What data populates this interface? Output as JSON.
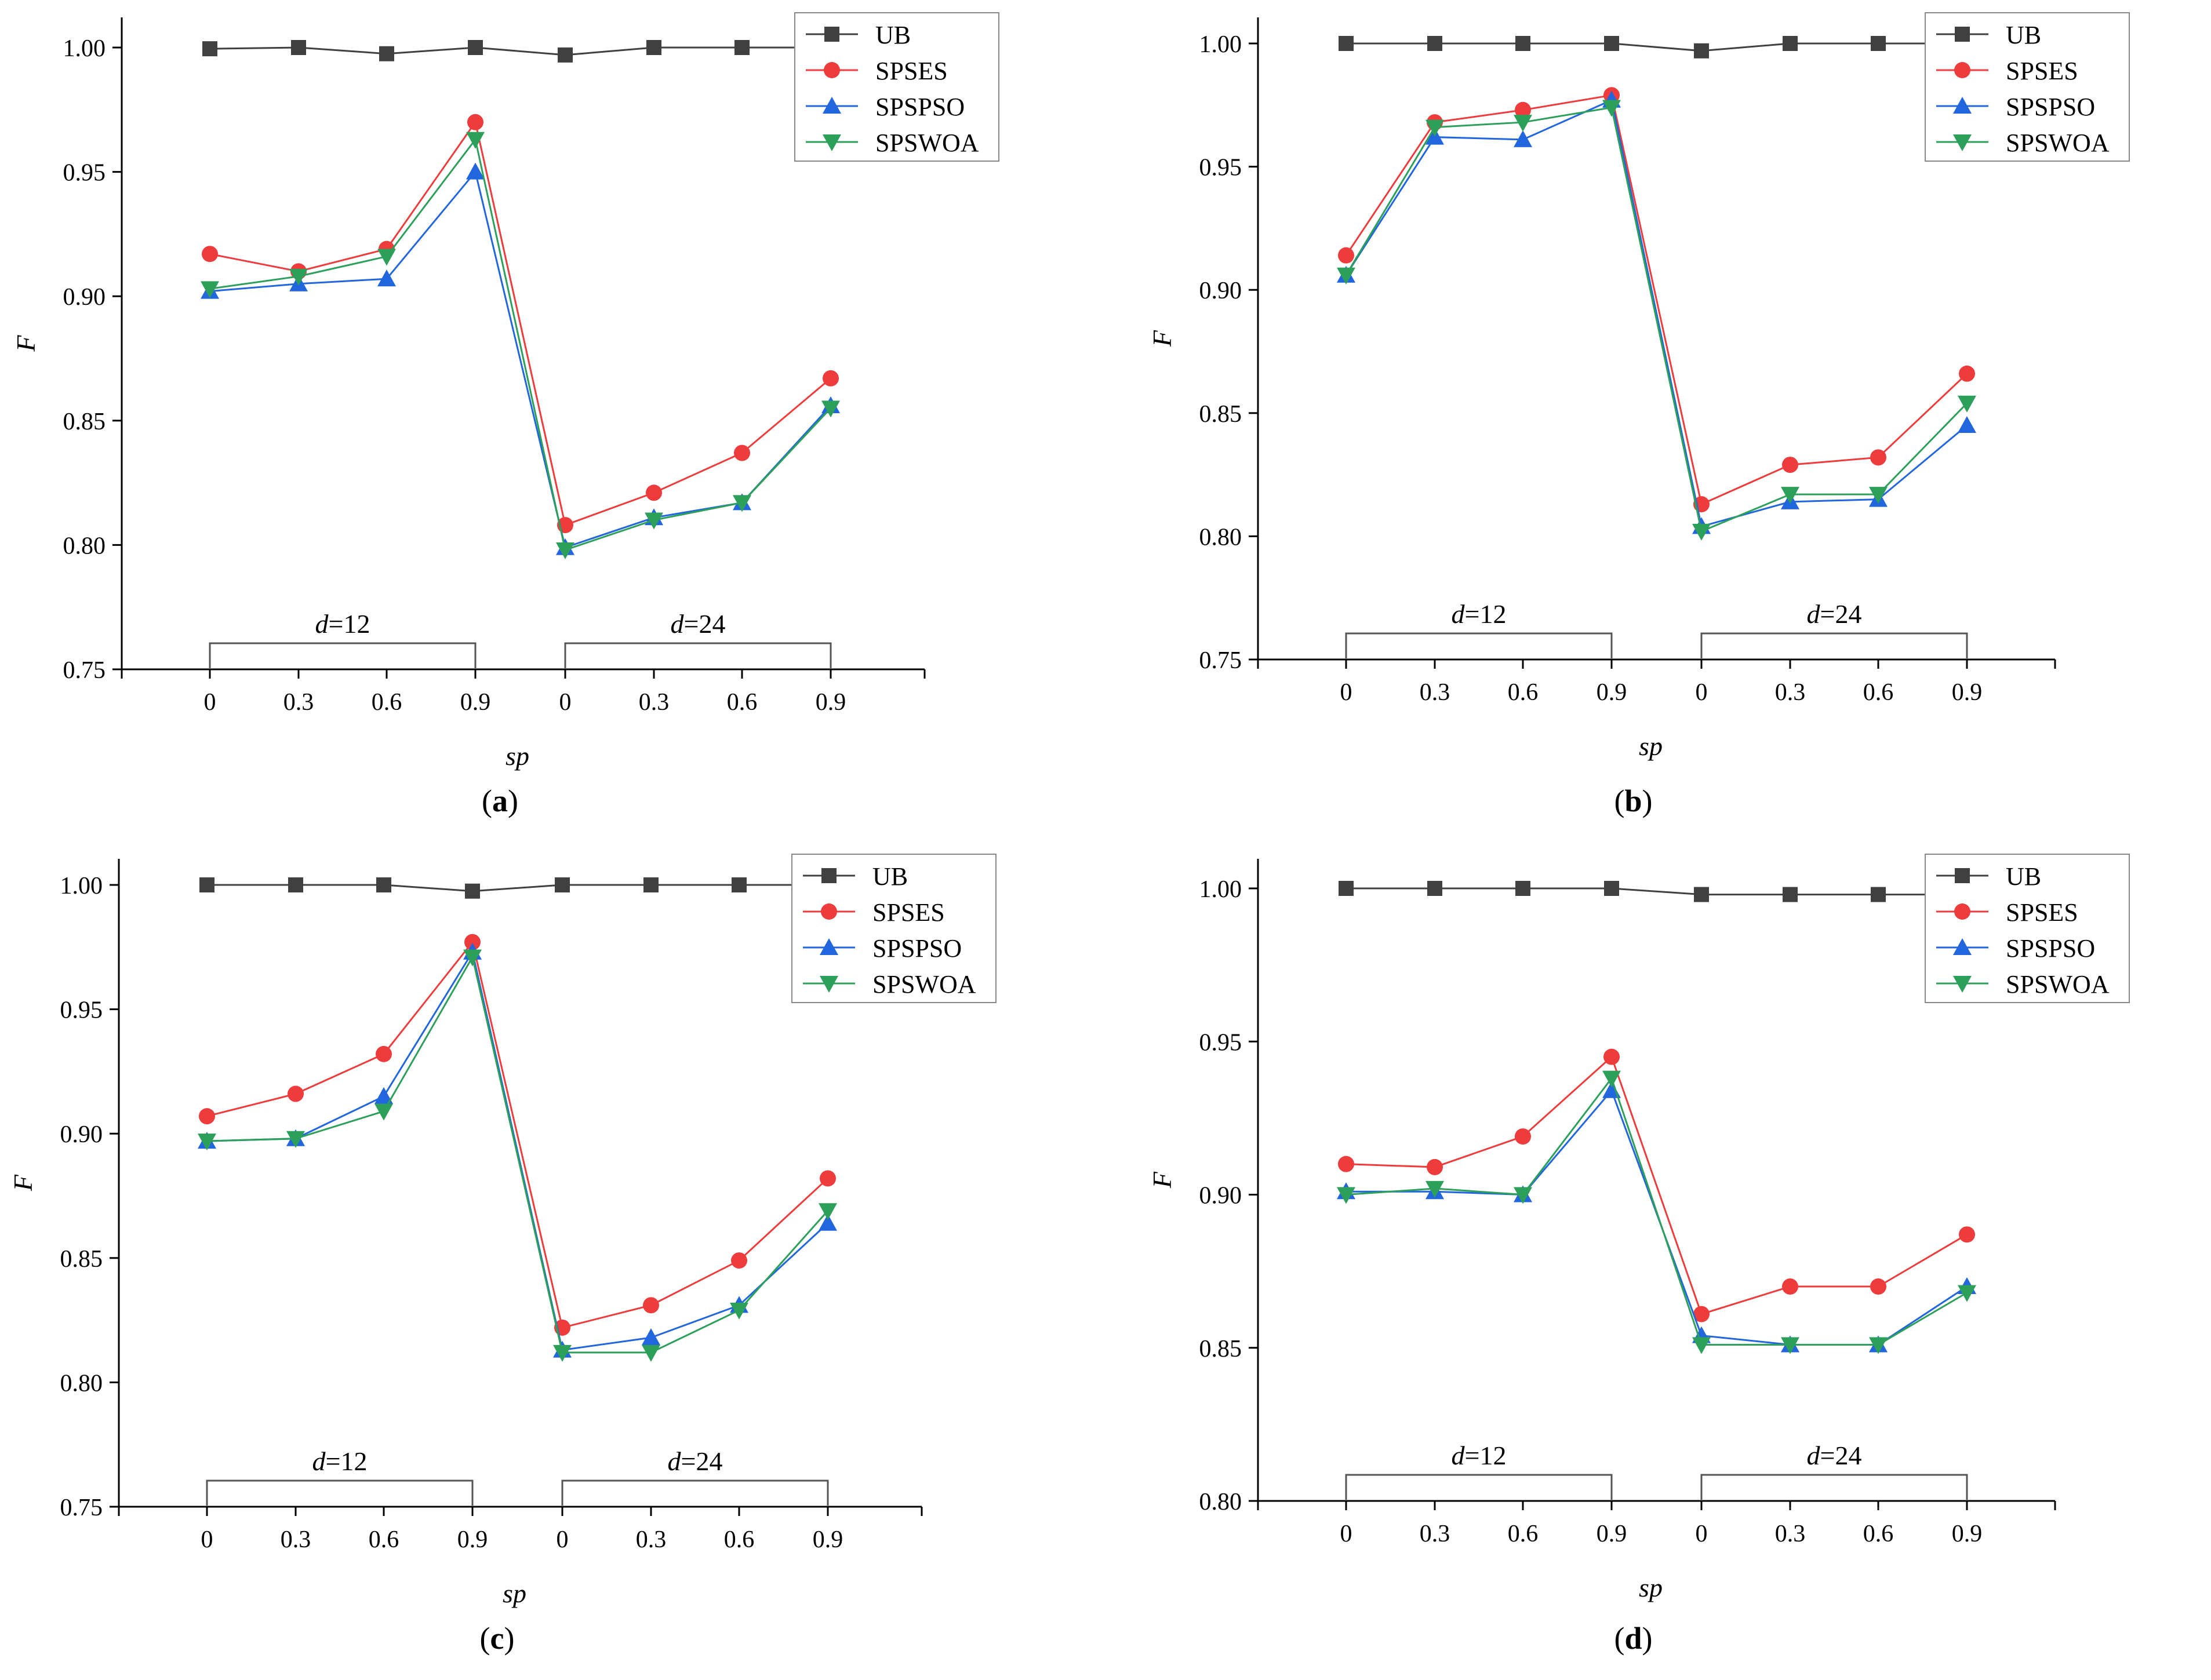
{
  "colors": {
    "UB": "#404040",
    "SPSES": "#ee3b3b",
    "SPSPSO": "#2266dd",
    "SPSWOA": "#2ca05a",
    "axis": "#000000",
    "bracket": "#555555"
  },
  "chart_data": [
    {
      "panel_label": "(a)",
      "type": "line",
      "xlabel": "sp",
      "ylabel": "F",
      "ylim": [
        0.75,
        1.0
      ],
      "yticks": [
        "0.75",
        "0.80",
        "0.85",
        "0.90",
        "0.95",
        "1.00"
      ],
      "categories": [
        "0",
        "0.3",
        "0.6",
        "0.9",
        "0",
        "0.3",
        "0.6",
        "0.9"
      ],
      "groups": [
        "d=12",
        "d=24"
      ],
      "legend": [
        "UB",
        "SPSES",
        "SPSPSO",
        "SPSWOA"
      ],
      "series": [
        {
          "name": "UB",
          "marker": "square",
          "values": [
            0.9995,
            1.0,
            0.9975,
            1.0,
            0.997,
            1.0,
            1.0,
            1.0
          ]
        },
        {
          "name": "SPSES",
          "marker": "circle",
          "values": [
            0.917,
            0.91,
            0.919,
            0.97,
            0.808,
            0.821,
            0.837,
            0.867
          ]
        },
        {
          "name": "SPSPSO",
          "marker": "triangle-up",
          "values": [
            0.902,
            0.905,
            0.907,
            0.95,
            0.799,
            0.811,
            0.817,
            0.856
          ]
        },
        {
          "name": "SPSWOA",
          "marker": "triangle-down",
          "values": [
            0.903,
            0.908,
            0.916,
            0.963,
            0.798,
            0.81,
            0.817,
            0.855
          ]
        }
      ]
    },
    {
      "panel_label": "(b)",
      "type": "line",
      "xlabel": "sp",
      "ylabel": "F",
      "ylim": [
        0.75,
        1.0
      ],
      "yticks": [
        "0.75",
        "0.80",
        "0.85",
        "0.90",
        "0.95",
        "1.00"
      ],
      "categories": [
        "0",
        "0.3",
        "0.6",
        "0.9",
        "0",
        "0.3",
        "0.6",
        "0.9"
      ],
      "groups": [
        "d=12",
        "d=24"
      ],
      "legend": [
        "UB",
        "SPSES",
        "SPSPSO",
        "SPSWOA"
      ],
      "series": [
        {
          "name": "UB",
          "marker": "square",
          "values": [
            1.0,
            1.0,
            1.0,
            1.0,
            0.997,
            1.0,
            1.0,
            1.0
          ]
        },
        {
          "name": "SPSES",
          "marker": "circle",
          "values": [
            0.914,
            0.968,
            0.973,
            0.979,
            0.813,
            0.829,
            0.832,
            0.866
          ]
        },
        {
          "name": "SPSPSO",
          "marker": "triangle-up",
          "values": [
            0.906,
            0.962,
            0.961,
            0.977,
            0.804,
            0.814,
            0.815,
            0.845
          ]
        },
        {
          "name": "SPSWOA",
          "marker": "triangle-down",
          "values": [
            0.906,
            0.966,
            0.968,
            0.974,
            0.802,
            0.817,
            0.817,
            0.854
          ]
        }
      ]
    },
    {
      "panel_label": "(c)",
      "type": "line",
      "xlabel": "sp",
      "ylabel": "F",
      "ylim": [
        0.75,
        1.0
      ],
      "yticks": [
        "0.75",
        "0.80",
        "0.85",
        "0.90",
        "0.95",
        "1.00"
      ],
      "categories": [
        "0",
        "0.3",
        "0.6",
        "0.9",
        "0",
        "0.3",
        "0.6",
        "0.9"
      ],
      "groups": [
        "d=12",
        "d=24"
      ],
      "legend": [
        "UB",
        "SPSES",
        "SPSPSO",
        "SPSWOA"
      ],
      "series": [
        {
          "name": "UB",
          "marker": "square",
          "values": [
            1.0,
            1.0,
            1.0,
            0.9975,
            1.0,
            1.0,
            1.0,
            1.0
          ]
        },
        {
          "name": "SPSES",
          "marker": "circle",
          "values": [
            0.907,
            0.916,
            0.932,
            0.977,
            0.822,
            0.831,
            0.849,
            0.882
          ]
        },
        {
          "name": "SPSPSO",
          "marker": "triangle-up",
          "values": [
            0.897,
            0.898,
            0.915,
            0.973,
            0.813,
            0.818,
            0.831,
            0.864
          ]
        },
        {
          "name": "SPSWOA",
          "marker": "triangle-down",
          "values": [
            0.897,
            0.898,
            0.909,
            0.971,
            0.812,
            0.812,
            0.829,
            0.869
          ]
        }
      ]
    },
    {
      "panel_label": "(d)",
      "type": "line",
      "xlabel": "sp",
      "ylabel": "F",
      "ylim": [
        0.8,
        1.01
      ],
      "yticks": [
        "0.80",
        "0.85",
        "0.90",
        "0.95",
        "1.00"
      ],
      "categories": [
        "0",
        "0.3",
        "0.6",
        "0.9",
        "0",
        "0.3",
        "0.6",
        "0.9"
      ],
      "groups": [
        "d=12",
        "d=24"
      ],
      "legend": [
        "UB",
        "SPSES",
        "SPSPSO",
        "SPSWOA"
      ],
      "series": [
        {
          "name": "UB",
          "marker": "square",
          "values": [
            1.0,
            1.0,
            1.0,
            1.0,
            0.998,
            0.998,
            0.998,
            0.998
          ]
        },
        {
          "name": "SPSES",
          "marker": "circle",
          "values": [
            0.91,
            0.909,
            0.919,
            0.945,
            0.861,
            0.87,
            0.87,
            0.887
          ]
        },
        {
          "name": "SPSPSO",
          "marker": "triangle-up",
          "values": [
            0.901,
            0.901,
            0.9,
            0.934,
            0.854,
            0.851,
            0.851,
            0.87
          ]
        },
        {
          "name": "SPSWOA",
          "marker": "triangle-down",
          "values": [
            0.9,
            0.902,
            0.9,
            0.938,
            0.851,
            0.851,
            0.851,
            0.868
          ]
        }
      ]
    }
  ]
}
